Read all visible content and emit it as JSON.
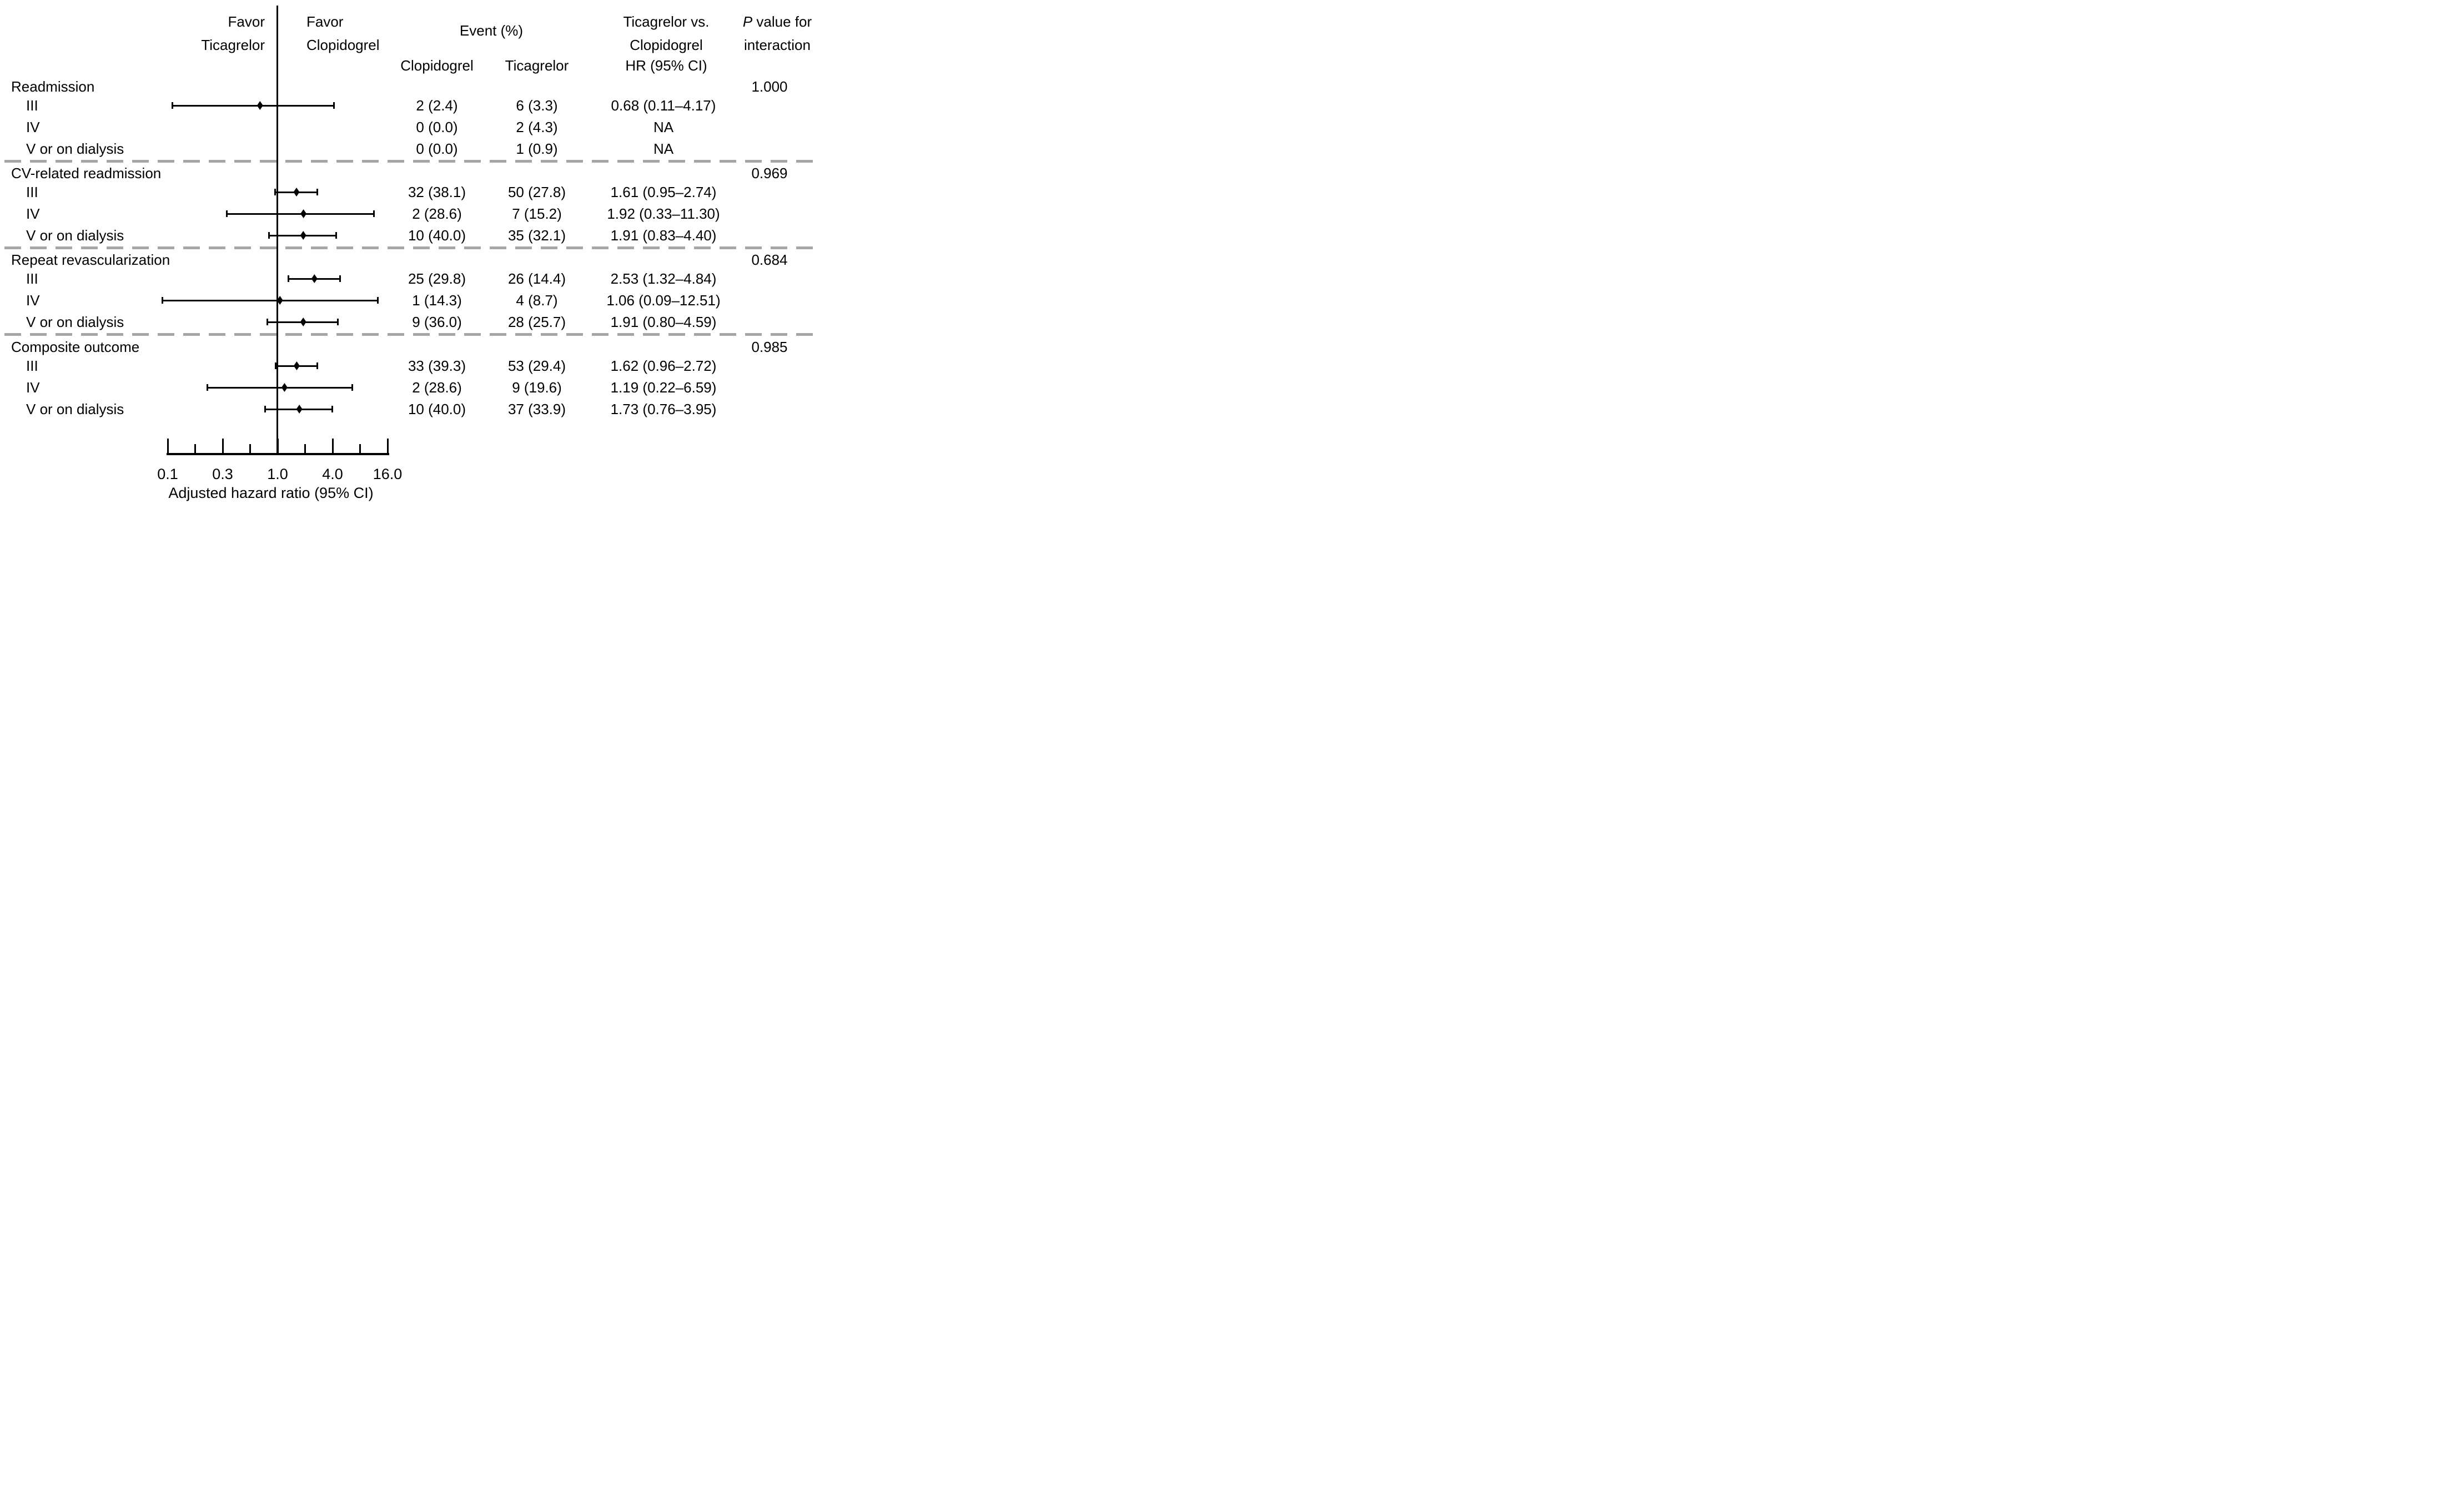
{
  "figure_meta": {
    "favor_left_line1": "Favor",
    "favor_left_line2": "Ticagrelor",
    "favor_right_line1": "Favor",
    "favor_right_line2": "Clopidogrel",
    "event_header": "Event (%)",
    "event_col_clopidogrel": "Clopidogrel",
    "event_col_ticagrelor": "Ticagrelor",
    "comparison_header_line1": "Ticagrelor vs.",
    "comparison_header_line2": "Clopidogrel",
    "hr_subheader": "HR (95% CI)",
    "p_header_italic": "P",
    "p_header_rest": " value for",
    "p_header_line2": "interaction"
  },
  "colors": {
    "text": "#000000",
    "marker": "#000000",
    "separator": "#a6a6a6"
  },
  "chart_data": {
    "type": "forest",
    "xlabel": "Adjusted hazard ratio (95% CI)",
    "x_scale": "log (piecewise between labeled ticks, minor tick between each pair)",
    "x_ticks": [
      0.1,
      0.3,
      1.0,
      4.0,
      16.0
    ],
    "x_tick_labels": [
      "0.1",
      "0.3",
      "1.0",
      "4.0",
      "16.0"
    ],
    "reference_line": 1.0,
    "legend_left_of_reference": "Favor Ticagrelor",
    "legend_right_of_reference": "Favor Clopidogrel",
    "groups": [
      {
        "label": "Readmission",
        "p_interaction": "1.000",
        "rows": [
          {
            "label": "III",
            "clop": "2 (2.4)",
            "ticag": "6 (3.3)",
            "hr_text": "0.68 (0.11–4.17)",
            "hr": 0.68,
            "lo": 0.11,
            "hi": 4.17
          },
          {
            "label": "IV",
            "clop": "0 (0.0)",
            "ticag": "2 (4.3)",
            "hr_text": "NA",
            "hr": null,
            "lo": null,
            "hi": null
          },
          {
            "label": "V or on dialysis",
            "clop": "0 (0.0)",
            "ticag": "1 (0.9)",
            "hr_text": "NA",
            "hr": null,
            "lo": null,
            "hi": null
          }
        ]
      },
      {
        "label": "CV-related readmission",
        "p_interaction": "0.969",
        "rows": [
          {
            "label": "III",
            "clop": "32 (38.1)",
            "ticag": "50 (27.8)",
            "hr_text": "1.61 (0.95–2.74)",
            "hr": 1.61,
            "lo": 0.95,
            "hi": 2.74
          },
          {
            "label": "IV",
            "clop": "2 (28.6)",
            "ticag": "7 (15.2)",
            "hr_text": "1.92 (0.33–11.30)",
            "hr": 1.92,
            "lo": 0.33,
            "hi": 11.3
          },
          {
            "label": "V or on dialysis",
            "clop": "10 (40.0)",
            "ticag": "35 (32.1)",
            "hr_text": "1.91 (0.83–4.40)",
            "hr": 1.91,
            "lo": 0.83,
            "hi": 4.4
          }
        ]
      },
      {
        "label": "Repeat revascularization",
        "p_interaction": "0.684",
        "rows": [
          {
            "label": "III",
            "clop": "25 (29.8)",
            "ticag": "26 (14.4)",
            "hr_text": "2.53 (1.32–4.84)",
            "hr": 2.53,
            "lo": 1.32,
            "hi": 4.84
          },
          {
            "label": "IV",
            "clop": "1 (14.3)",
            "ticag": "4 (8.7)",
            "hr_text": "1.06 (0.09–12.51)",
            "hr": 1.06,
            "lo": 0.09,
            "hi": 12.51
          },
          {
            "label": "V or on dialysis",
            "clop": "9 (36.0)",
            "ticag": "28 (25.7)",
            "hr_text": "1.91 (0.80–4.59)",
            "hr": 1.91,
            "lo": 0.8,
            "hi": 4.59
          }
        ]
      },
      {
        "label": "Composite outcome",
        "p_interaction": "0.985",
        "rows": [
          {
            "label": "III",
            "clop": "33 (39.3)",
            "ticag": "53 (29.4)",
            "hr_text": "1.62 (0.96–2.72)",
            "hr": 1.62,
            "lo": 0.96,
            "hi": 2.72
          },
          {
            "label": "IV",
            "clop": "2 (28.6)",
            "ticag": "9 (19.6)",
            "hr_text": "1.19 (0.22–6.59)",
            "hr": 1.19,
            "lo": 0.22,
            "hi": 6.59
          },
          {
            "label": "V or on dialysis",
            "clop": "10 (40.0)",
            "ticag": "37 (33.9)",
            "hr_text": "1.73 (0.76–3.95)",
            "hr": 1.73,
            "lo": 0.76,
            "hi": 3.95
          }
        ]
      }
    ]
  }
}
